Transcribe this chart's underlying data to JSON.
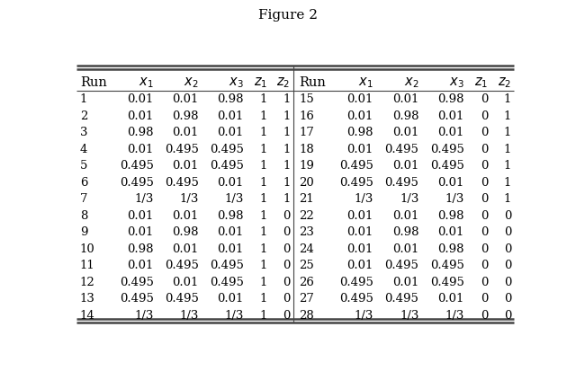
{
  "title": "Figure 2",
  "col_headers": [
    "Run",
    "$x_1$",
    "$x_2$",
    "$x_3$",
    "$z_1$",
    "$z_2$"
  ],
  "left_table": [
    [
      "1",
      "0.01",
      "0.01",
      "0.98",
      "1",
      "1"
    ],
    [
      "2",
      "0.01",
      "0.98",
      "0.01",
      "1",
      "1"
    ],
    [
      "3",
      "0.98",
      "0.01",
      "0.01",
      "1",
      "1"
    ],
    [
      "4",
      "0.01",
      "0.495",
      "0.495",
      "1",
      "1"
    ],
    [
      "5",
      "0.495",
      "0.01",
      "0.495",
      "1",
      "1"
    ],
    [
      "6",
      "0.495",
      "0.495",
      "0.01",
      "1",
      "1"
    ],
    [
      "7",
      "1/3",
      "1/3",
      "1/3",
      "1",
      "1"
    ],
    [
      "8",
      "0.01",
      "0.01",
      "0.98",
      "1",
      "0"
    ],
    [
      "9",
      "0.01",
      "0.98",
      "0.01",
      "1",
      "0"
    ],
    [
      "10",
      "0.98",
      "0.01",
      "0.01",
      "1",
      "0"
    ],
    [
      "11",
      "0.01",
      "0.495",
      "0.495",
      "1",
      "0"
    ],
    [
      "12",
      "0.495",
      "0.01",
      "0.495",
      "1",
      "0"
    ],
    [
      "13",
      "0.495",
      "0.495",
      "0.01",
      "1",
      "0"
    ],
    [
      "14",
      "1/3",
      "1/3",
      "1/3",
      "1",
      "0"
    ]
  ],
  "right_table": [
    [
      "15",
      "0.01",
      "0.01",
      "0.98",
      "0",
      "1"
    ],
    [
      "16",
      "0.01",
      "0.98",
      "0.01",
      "0",
      "1"
    ],
    [
      "17",
      "0.98",
      "0.01",
      "0.01",
      "0",
      "1"
    ],
    [
      "18",
      "0.01",
      "0.495",
      "0.495",
      "0",
      "1"
    ],
    [
      "19",
      "0.495",
      "0.01",
      "0.495",
      "0",
      "1"
    ],
    [
      "20",
      "0.495",
      "0.495",
      "0.01",
      "0",
      "1"
    ],
    [
      "21",
      "1/3",
      "1/3",
      "1/3",
      "0",
      "1"
    ],
    [
      "22",
      "0.01",
      "0.01",
      "0.98",
      "0",
      "0"
    ],
    [
      "23",
      "0.01",
      "0.98",
      "0.01",
      "0",
      "0"
    ],
    [
      "24",
      "0.01",
      "0.01",
      "0.98",
      "0",
      "0"
    ],
    [
      "25",
      "0.01",
      "0.495",
      "0.495",
      "0",
      "0"
    ],
    [
      "26",
      "0.495",
      "0.01",
      "0.495",
      "0",
      "0"
    ],
    [
      "27",
      "0.495",
      "0.495",
      "0.01",
      "0",
      "0"
    ],
    [
      "28",
      "1/3",
      "1/3",
      "1/3",
      "0",
      "0"
    ]
  ],
  "bg_color": "#ffffff",
  "text_color": "#000000",
  "line_color": "#444444",
  "header_fontsize": 10.5,
  "cell_fontsize": 9.5,
  "title_fontsize": 11
}
